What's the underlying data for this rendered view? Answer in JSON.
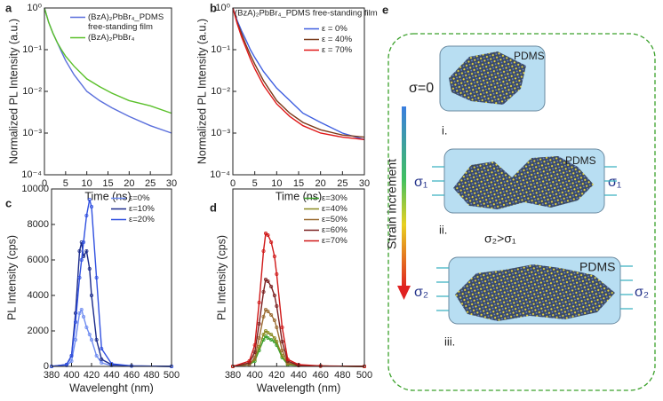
{
  "chart_data": [
    {
      "type": "line",
      "label": "a",
      "xlabel": "Time (ns)",
      "ylabel": "Normalized PL Intensity (a.u.)",
      "log_y": true,
      "x": [
        0,
        1,
        2,
        3,
        4,
        5,
        7,
        10,
        13,
        16,
        20,
        25,
        30
      ],
      "series": [
        {
          "name": "(BzA)₂PbBr₄_PDMS free-standing film",
          "color": "#5a6fdc",
          "values": [
            1,
            0.45,
            0.25,
            0.15,
            0.09,
            0.055,
            0.025,
            0.01,
            0.006,
            0.004,
            0.0025,
            0.0015,
            0.001
          ]
        },
        {
          "name": "(BzA)₂PbBr₄",
          "color": "#5ac02a",
          "values": [
            1,
            0.45,
            0.25,
            0.15,
            0.1,
            0.07,
            0.04,
            0.02,
            0.013,
            0.009,
            0.006,
            0.0045,
            0.003
          ]
        }
      ],
      "xlim": [
        0,
        30
      ],
      "xticks": [
        0,
        5,
        10,
        15,
        20,
        25,
        30
      ],
      "ylim": [
        0.0001,
        1
      ],
      "yticks": [
        {
          "value": 1,
          "label": "10⁰"
        },
        {
          "value": 0.1,
          "label": "10⁻¹"
        },
        {
          "value": 0.01,
          "label": "10⁻²"
        },
        {
          "value": 0.001,
          "label": "10⁻³"
        },
        {
          "value": 0.0001,
          "label": "10⁻⁴"
        }
      ],
      "legend": "upper right"
    },
    {
      "type": "line",
      "label": "b",
      "xlabel": "Time (ns)",
      "ylabel": "Normalized PL Intensity (a.u.)",
      "log_y": true,
      "annotation": "(BzA)₂PbBr₄_PDMS free-standing film",
      "x": [
        0,
        1,
        2,
        3,
        4,
        5,
        7,
        10,
        13,
        16,
        20,
        25,
        30
      ],
      "series": [
        {
          "name": "ε = 0%",
          "color": "#3f5fe0",
          "values": [
            1,
            0.5,
            0.28,
            0.17,
            0.1,
            0.065,
            0.03,
            0.012,
            0.006,
            0.003,
            0.0018,
            0.001,
            0.0007
          ]
        },
        {
          "name": "ε = 40%",
          "color": "#7a3a1a",
          "values": [
            1,
            0.45,
            0.24,
            0.13,
            0.075,
            0.045,
            0.018,
            0.006,
            0.003,
            0.0018,
            0.0012,
            0.0009,
            0.0008
          ]
        },
        {
          "name": "ε = 70%",
          "color": "#e01818",
          "values": [
            1,
            0.42,
            0.2,
            0.11,
            0.06,
            0.035,
            0.014,
            0.005,
            0.0025,
            0.0015,
            0.001,
            0.0008,
            0.0007
          ]
        }
      ],
      "xlim": [
        0,
        30
      ],
      "xticks": [
        0,
        5,
        10,
        15,
        20,
        25,
        30
      ],
      "ylim": [
        0.0001,
        1
      ],
      "yticks": [
        {
          "value": 1,
          "label": "10⁰"
        },
        {
          "value": 0.1,
          "label": "10⁻¹"
        },
        {
          "value": 0.01,
          "label": "10⁻²"
        },
        {
          "value": 0.001,
          "label": "10⁻³"
        },
        {
          "value": 0.0001,
          "label": "10⁻⁴"
        }
      ],
      "legend": "upper right"
    },
    {
      "type": "line",
      "label": "c",
      "xlabel": "Wavelenght (nm)",
      "ylabel": "PL Intensity (cps)",
      "markers": true,
      "x": [
        380,
        395,
        400,
        404,
        408,
        410,
        412,
        415,
        418,
        420,
        425,
        430,
        440,
        460,
        500
      ],
      "series": [
        {
          "name": "ε=0%",
          "color": "#6f8cf0",
          "values": [
            0,
            50,
            300,
            1500,
            3000,
            3200,
            2800,
            2200,
            1800,
            1500,
            600,
            200,
            50,
            20,
            0
          ]
        },
        {
          "name": "ε=10%",
          "color": "#1a2a8a",
          "values": [
            0,
            100,
            600,
            3000,
            6500,
            7000,
            6200,
            6500,
            5500,
            4000,
            1500,
            400,
            100,
            30,
            0
          ]
        },
        {
          "name": "ε=20%",
          "color": "#3050e0",
          "values": [
            0,
            100,
            600,
            2500,
            5000,
            6000,
            7000,
            8500,
            9400,
            9000,
            5000,
            1000,
            150,
            30,
            0
          ]
        }
      ],
      "xlim": [
        380,
        500
      ],
      "xticks": [
        380,
        400,
        420,
        440,
        460,
        480,
        500
      ],
      "ylim": [
        0,
        10000
      ],
      "yticks": [
        0,
        2000,
        4000,
        6000,
        8000,
        10000
      ],
      "legend": "upper right"
    },
    {
      "type": "line",
      "label": "d",
      "xlabel": "Wavelength (nm)",
      "ylabel": "PL Intensity (cps)",
      "markers": true,
      "x": [
        380,
        395,
        400,
        404,
        408,
        410,
        412,
        415,
        418,
        420,
        425,
        430,
        440,
        460,
        500
      ],
      "series": [
        {
          "name": "ε=30%",
          "color": "#3aa02a",
          "values": [
            0,
            1,
            3,
            9,
            15,
            17,
            16,
            15,
            14,
            12,
            5,
            1,
            0.5,
            0.2,
            0
          ]
        },
        {
          "name": "ε=40%",
          "color": "#8a8a20",
          "values": [
            0,
            1,
            4,
            11,
            18,
            20,
            19,
            18,
            16,
            14,
            6,
            1.5,
            0.5,
            0.2,
            0
          ]
        },
        {
          "name": "ε=50%",
          "color": "#9a6a30",
          "values": [
            0,
            1,
            5,
            16,
            28,
            32,
            31,
            29,
            26,
            22,
            9,
            2,
            0.5,
            0.2,
            0
          ]
        },
        {
          "name": "ε=60%",
          "color": "#7a2020",
          "values": [
            0,
            2,
            8,
            24,
            42,
            49,
            48,
            45,
            40,
            34,
            14,
            3,
            0.5,
            0.2,
            0
          ]
        },
        {
          "name": "ε=70%",
          "color": "#d01818",
          "values": [
            0,
            3,
            12,
            36,
            65,
            75,
            74,
            70,
            62,
            52,
            22,
            4,
            1,
            0.3,
            0
          ]
        }
      ],
      "xlim": [
        380,
        500
      ],
      "xticks": [
        380,
        400,
        420,
        440,
        460,
        480,
        500
      ],
      "ylim": [
        0,
        100
      ],
      "legend": "upper right"
    }
  ],
  "diagram": {
    "label": "e",
    "strain_label": "Strain increment",
    "panels": [
      {
        "matrix": "PDMS",
        "stress": "σ=0",
        "index": "i."
      },
      {
        "matrix": "PDMS",
        "stress_left": "σ₁",
        "stress_right": "σ₁",
        "index": "ii.",
        "relation": "σ₂>σ₁"
      },
      {
        "matrix": "PDMS",
        "stress_left": "σ₂",
        "stress_right": "σ₂",
        "index": "iii."
      }
    ]
  }
}
